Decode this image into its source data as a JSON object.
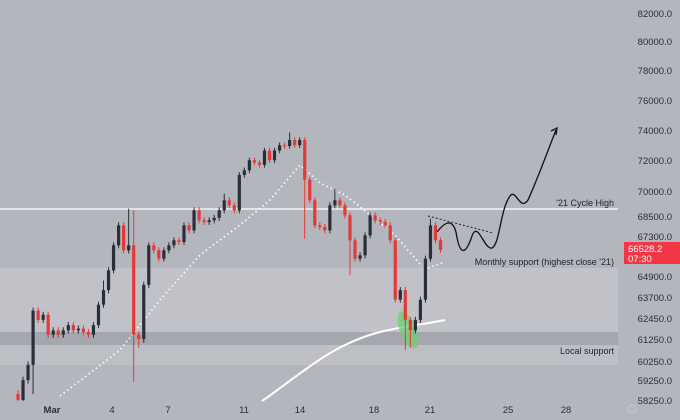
{
  "chart_data": {
    "type": "candlestick",
    "title": "",
    "x_ticks": [
      "Mar",
      "4",
      "7",
      "11",
      "14",
      "18",
      "21",
      "25",
      "28"
    ],
    "y_ticks": [
      82000.0,
      80000.0,
      78000.0,
      76000.0,
      74000.0,
      72000.0,
      70000.0,
      68500.0,
      67300.0,
      64900.0,
      63700.0,
      62450.0,
      61250.0,
      60250.0,
      59250.0,
      58250.0
    ],
    "y_tick_labels": [
      "82000.0",
      "80000.0",
      "78000.0",
      "76000.0",
      "74000.0",
      "72000.0",
      "70000.0",
      "68500.0",
      "67300.0",
      "64900.0",
      "63700.0",
      "62450.0",
      "61250.0",
      "60250.0",
      "59250.0",
      "58250.0"
    ],
    "first_open": 58600,
    "closes": [
      58300,
      59300,
      60100,
      62950,
      62400,
      62700,
      61550,
      61800,
      61550,
      61800,
      62100,
      61800,
      61900,
      61700,
      61550,
      62100,
      63300,
      64150,
      65300,
      66800,
      68000,
      66500,
      66800,
      61550,
      61300,
      64450,
      66800,
      66500,
      66000,
      66500,
      66800,
      67100,
      67000,
      68000,
      67700,
      68900,
      68300,
      68200,
      68300,
      68450,
      68900,
      69500,
      69200,
      68900,
      71100,
      71400,
      72050,
      71900,
      71750,
      72700,
      72050,
      72700,
      73050,
      73000,
      73400,
      73050,
      73400,
      70800,
      69500,
      68000,
      67900,
      67700,
      69200,
      69500,
      69200,
      68600,
      67100,
      66000,
      66200,
      67400,
      68600,
      68300,
      68200,
      68000,
      67100,
      63600,
      64150,
      62400,
      61800,
      62400,
      63600,
      66000,
      68000,
      67100,
      66528.2
    ],
    "wick_highs": {
      "17": 64700,
      "22": 69000,
      "23": 68900,
      "41": 69900,
      "54": 73900,
      "63": 70200,
      "82": 68400
    },
    "wick_lows": {
      "3": 58600,
      "23": 59200,
      "24": 60900,
      "57": 67200,
      "66": 65000,
      "77": 60800,
      "78": 60900
    },
    "up_color": "#2a2e39",
    "down_color": "#e53935",
    "levels": [
      {
        "label": "'21 Cycle High",
        "price": 69000,
        "color": "#ffffff"
      },
      {
        "label": "Monthly support (highest close '21)",
        "price_top": 65450,
        "price_bottom": 61700,
        "color": "#c0c2c8"
      },
      {
        "label": "Local support",
        "price_top": 61700,
        "price_bottom": 61000,
        "color": "#a4a6ad"
      }
    ],
    "last_price": {
      "value": "66528.2",
      "countdown": "07:30",
      "color": "#f23645"
    },
    "grid": false,
    "legend": "none"
  }
}
